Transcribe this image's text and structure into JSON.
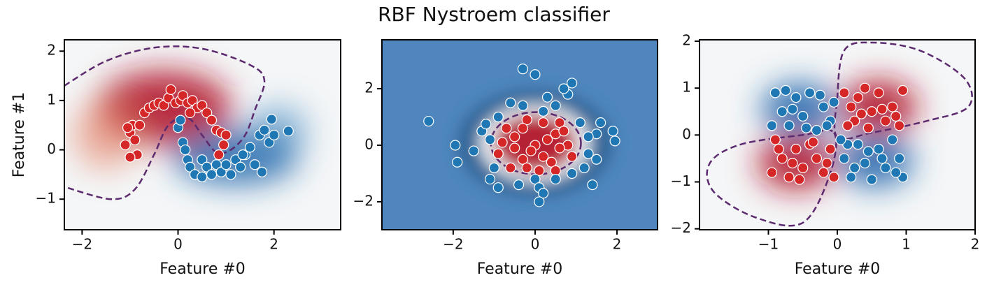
{
  "title": "RBF Nystroem classifier",
  "chart_data": [
    {
      "type": "scatter",
      "xlabel": "Feature #0",
      "ylabel": "Feature #1",
      "xlim": [
        -2.37,
        3.39
      ],
      "ylim": [
        -1.62,
        2.23
      ],
      "xticks": [
        {
          "value": -2,
          "label": "−2"
        },
        0,
        2
      ],
      "yticks": [
        {
          "value": -1,
          "label": "−1"
        },
        0,
        1,
        2
      ],
      "series": [
        {
          "color": "#d62728",
          "x": [
            -1.1,
            -1.0,
            -0.95,
            -1.05,
            -0.9,
            -0.8,
            -0.7,
            -0.6,
            -0.5,
            -0.4,
            -0.3,
            -0.2,
            -0.15,
            -0.05,
            0.05,
            0.1,
            0.2,
            0.3,
            0.4,
            0.5,
            0.6,
            0.7,
            0.8,
            0.9,
            1.0,
            0.95,
            0.85,
            -0.85,
            -1.0,
            0.25
          ],
          "values": [
            0.1,
            0.35,
            0.5,
            0.45,
            0.2,
            0.5,
            0.75,
            0.85,
            0.9,
            0.95,
            0.9,
            1.05,
            1.22,
            0.95,
            1.0,
            1.1,
            0.95,
            1.0,
            0.85,
            0.9,
            0.75,
            0.6,
            0.4,
            0.35,
            0.3,
            0.1,
            -0.1,
            -0.1,
            -0.15,
            0.75
          ]
        },
        {
          "color": "#1f77b4",
          "x": [
            0.0,
            0.05,
            0.1,
            0.15,
            0.2,
            0.25,
            0.35,
            0.5,
            0.6,
            0.7,
            0.8,
            0.9,
            1.0,
            1.1,
            1.2,
            1.3,
            1.4,
            1.5,
            1.6,
            1.7,
            1.8,
            1.9,
            2.0,
            2.3,
            1.95,
            1.75,
            0.5,
            1.35
          ],
          "values": [
            0.45,
            0.6,
            0.15,
            0.0,
            -0.2,
            -0.35,
            -0.5,
            -0.2,
            -0.35,
            -0.5,
            -0.3,
            -0.45,
            -0.3,
            -0.5,
            -0.2,
            -0.35,
            -0.1,
            0.05,
            -0.3,
            0.3,
            0.4,
            0.15,
            0.3,
            0.38,
            0.62,
            -0.45,
            -0.55,
            -0.1
          ]
        }
      ]
    },
    {
      "type": "scatter",
      "xlabel": "Feature #0",
      "xlim": [
        -3.74,
        2.99
      ],
      "ylim": [
        -2.99,
        3.73
      ],
      "xticks": [
        {
          "value": -2,
          "label": "−2"
        },
        0,
        2
      ],
      "yticks": [
        {
          "value": -2,
          "label": "−2"
        },
        0,
        2
      ],
      "series": [
        {
          "color": "#d62728",
          "x": [
            0,
            -0.5,
            0.5,
            -0.3,
            0.4,
            0.8,
            -0.8,
            0.2,
            -0.2,
            0.6,
            -0.6,
            0.1,
            -0.9,
            0.9,
            0.3,
            -0.1,
            0.6,
            -0.5,
            0.2,
            -0.3,
            0.7,
            -0.7,
            0.5,
            -0.2
          ],
          "values": [
            0,
            0.3,
            0.4,
            -0.5,
            -0.6,
            0,
            0.1,
            0.8,
            0.9,
            0.8,
            -0.8,
            -0.9,
            -0.3,
            -0.4,
            0.2,
            -0.2,
            -0.1,
            -0.1,
            -0.4,
            0.6,
            0.5,
            0.6,
            -0.9,
            -0.8
          ]
        },
        {
          "color": "#1f77b4",
          "x": [
            -2.6,
            -1.95,
            -1.9,
            -1.5,
            -1.3,
            -1.2,
            -1.0,
            -1.1,
            -0.9,
            -0.4,
            0.0,
            0.1,
            0.2,
            0.1,
            0.5,
            0.9,
            1.2,
            1.4,
            1.5,
            1.6,
            1.9,
            1.95,
            1.1,
            1.3,
            -0.3,
            0.2,
            0.5,
            0.8,
            0.9,
            0.7,
            0.0,
            -0.3,
            0.3,
            -0.6,
            -0.9,
            -1.1,
            1.5,
            1.3
          ],
          "values": [
            0.85,
            0.0,
            -0.6,
            -0.2,
            0.5,
            0.75,
            -0.8,
            -1.2,
            -1.5,
            -1.4,
            -1.2,
            -1.5,
            -1.7,
            -2.0,
            -1.2,
            -1.0,
            -0.8,
            -1.4,
            0.4,
            0.8,
            0.5,
            0.15,
            0.8,
            0.3,
            1.4,
            1.2,
            1.4,
            1.8,
            2.2,
            2.0,
            2.5,
            2.7,
            1.7,
            1.5,
            1.0,
            0.2,
            -0.5,
            -0.3
          ]
        }
      ]
    },
    {
      "type": "scatter",
      "xlabel": "Feature #0",
      "xlim": [
        -2.0,
        2.0
      ],
      "ylim": [
        -2.02,
        2.03
      ],
      "xticks": [
        {
          "value": -1,
          "label": "−1"
        },
        0,
        1,
        2
      ],
      "yticks": [
        {
          "value": -2,
          "label": "−2"
        },
        {
          "value": -1,
          "label": "−1"
        },
        0,
        1,
        2
      ],
      "series": [
        {
          "color": "#d62728",
          "x": [
            0.1,
            0.2,
            0.3,
            0.4,
            0.5,
            0.6,
            0.7,
            0.8,
            0.9,
            0.95,
            0.25,
            0.45,
            0.65,
            0.15,
            0.85,
            0.35,
            -0.9,
            -0.8,
            -0.7,
            -0.6,
            -0.5,
            -0.4,
            -0.3,
            -0.2,
            -0.1,
            -0.95,
            -0.65,
            -0.35,
            -0.85,
            -0.15,
            -0.55,
            -0.05
          ],
          "values": [
            0.9,
            0.6,
            0.8,
            1.0,
            0.5,
            0.9,
            0.3,
            0.6,
            0.2,
            0.95,
            0.3,
            0.15,
            0.55,
            0.2,
            0.4,
            0.45,
            -0.1,
            -0.5,
            -0.9,
            -0.3,
            -0.7,
            -0.2,
            -0.5,
            -0.8,
            -0.3,
            -0.8,
            -0.6,
            -0.15,
            -0.3,
            -0.6,
            -0.95,
            -0.9
          ]
        },
        {
          "color": "#1f77b4",
          "x": [
            -0.9,
            -0.8,
            -0.7,
            -0.6,
            -0.5,
            -0.4,
            -0.3,
            -0.2,
            -0.1,
            -0.95,
            -0.75,
            -0.45,
            -0.25,
            -0.05,
            -0.65,
            -0.15,
            0.1,
            0.2,
            0.3,
            0.4,
            0.5,
            0.6,
            0.7,
            0.8,
            0.9,
            0.95,
            0.15,
            0.45,
            0.65,
            0.85,
            0.25,
            0.05
          ],
          "values": [
            0.9,
            0.5,
            0.2,
            0.8,
            0.4,
            0.9,
            0.1,
            0.6,
            0.3,
            0.2,
            0.95,
            0.15,
            0.85,
            0.7,
            0.55,
            0.2,
            -0.5,
            -0.9,
            -0.2,
            -0.6,
            -0.95,
            -0.3,
            -0.7,
            -0.1,
            -0.5,
            -0.9,
            -0.2,
            -0.35,
            -0.5,
            -0.8,
            -0.7,
            -0.1
          ]
        }
      ]
    }
  ]
}
